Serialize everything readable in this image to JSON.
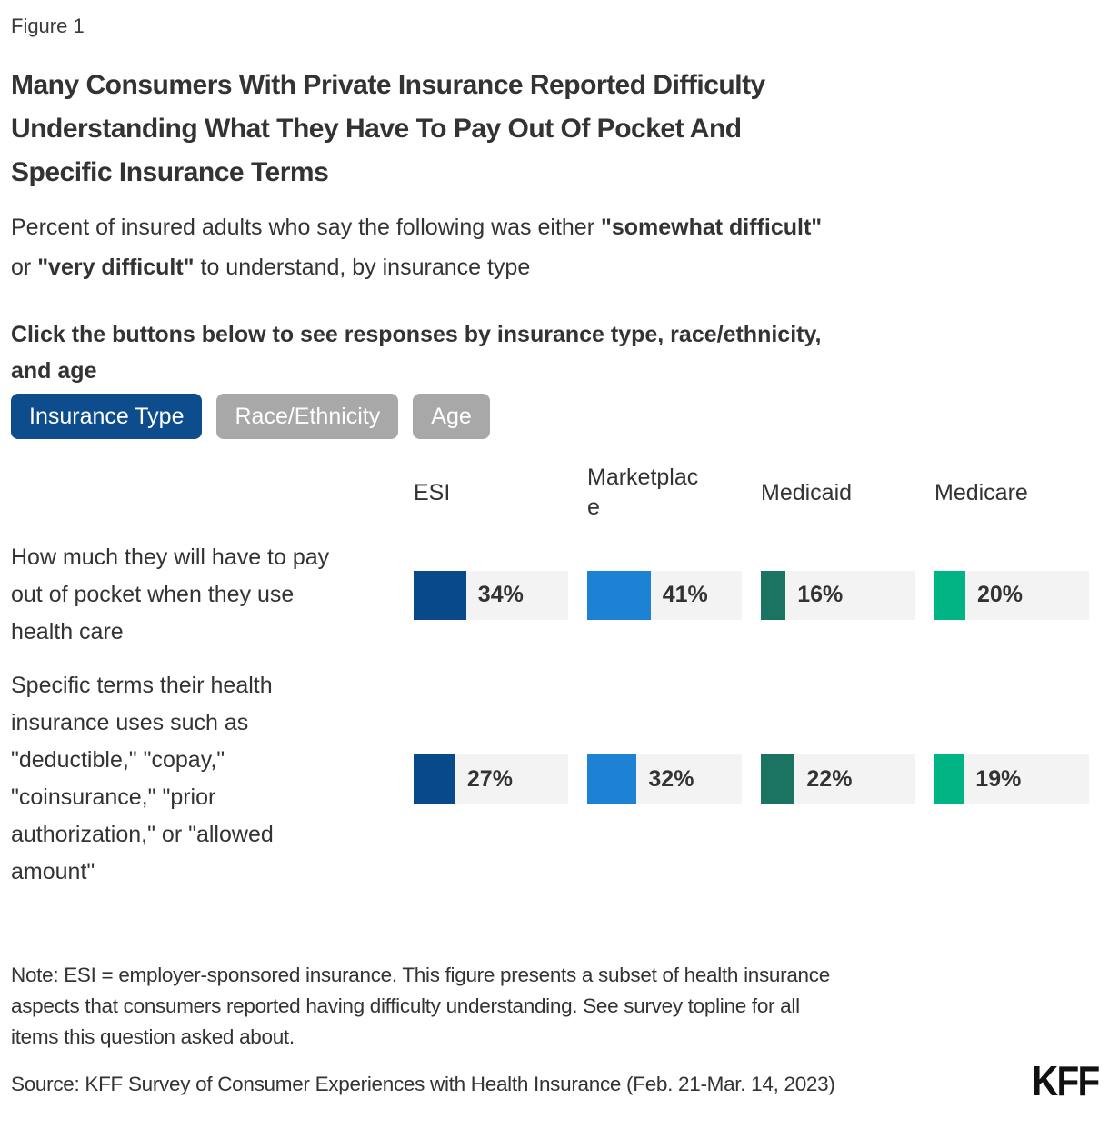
{
  "figure_label": "Figure 1",
  "title": "Many Consumers With Private Insurance Reported Difficulty\nUnderstanding What They Have To Pay Out Of Pocket And\nSpecific Insurance Terms",
  "subtitle_segments": [
    {
      "text": "Percent of insured adults who say the following was either ",
      "bold": false
    },
    {
      "text": "\"somewhat difficult\"",
      "bold": true
    },
    {
      "text": "\nor ",
      "bold": false
    },
    {
      "text": "\"very difficult\"",
      "bold": true
    },
    {
      "text": " to understand, by insurance type",
      "bold": false
    }
  ],
  "instruction": "Click the buttons below to see responses by insurance type, race/ethnicity,\nand age",
  "view_buttons": [
    {
      "label": "Insurance Type",
      "active": true
    },
    {
      "label": "Race/Ethnicity",
      "active": false
    },
    {
      "label": "Age",
      "active": false
    }
  ],
  "colors": {
    "active_button": "#0d4d8d",
    "inactive_button": "#a8a8a8",
    "bar_track": "#f3f3f3",
    "text": "#333333"
  },
  "chart_data": {
    "type": "bar",
    "orientation": "horizontal",
    "unit": "%",
    "value_range": [
      0,
      100
    ],
    "grid": false,
    "legend_position": "column-headers-top",
    "categories": [
      "How much they will have to pay out of pocket when they use health care",
      "Specific terms their health insurance uses such as \"deductible,\" \"copay,\" \"coinsurance,\" \"prior authorization,\" or \"allowed amount\""
    ],
    "series": [
      {
        "name": "ESI",
        "color": "#07498a",
        "values": [
          34,
          27
        ]
      },
      {
        "name": "Marketplace",
        "color": "#1d81d4",
        "values": [
          41,
          32
        ]
      },
      {
        "name": "Medicaid",
        "color": "#1b7462",
        "values": [
          16,
          22
        ]
      },
      {
        "name": "Medicare",
        "color": "#00b583",
        "values": [
          20,
          19
        ]
      }
    ]
  },
  "note": "Note: ESI = employer-sponsored insurance. This figure presents a subset of health insurance\naspects that consumers reported having difficulty understanding. See survey topline for all\nitems this question asked about.",
  "source": "Source: KFF Survey of Consumer Experiences with Health Insurance (Feb. 21-Mar. 14, 2023)",
  "logo": "KFF"
}
